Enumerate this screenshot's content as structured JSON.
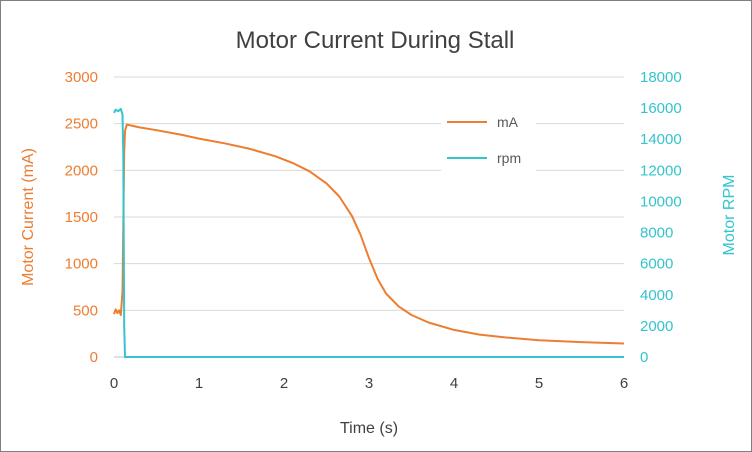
{
  "chart_data": {
    "type": "line",
    "title": "Motor Current During Stall",
    "xlabel": "Time (s)",
    "ylabel": "Motor Current (mA)",
    "y2label": "Motor RPM",
    "xlim": [
      0,
      6
    ],
    "ylim": [
      0,
      3000
    ],
    "y2lim": [
      0,
      18000
    ],
    "x_ticks": [
      "0",
      "1",
      "2",
      "3",
      "4",
      "5",
      "6"
    ],
    "y_ticks": [
      "0",
      "500",
      "1000",
      "1500",
      "2000",
      "2500",
      "3000"
    ],
    "y2_ticks": [
      "0",
      "2000",
      "4000",
      "6000",
      "8000",
      "10000",
      "12000",
      "14000",
      "16000",
      "18000"
    ],
    "grid": true,
    "legend_position": "top-right",
    "colors": {
      "current": "#ED7D31",
      "rpm": "#33C4CE",
      "left_axis": "#ED7D31",
      "right_axis": "#33C4CE"
    },
    "series": [
      {
        "name": "mA",
        "axis": "left",
        "x": [
          0.0,
          0.02,
          0.04,
          0.06,
          0.08,
          0.1,
          0.11,
          0.12,
          0.13,
          0.15,
          0.2,
          0.3,
          0.5,
          0.8,
          1.0,
          1.3,
          1.6,
          1.9,
          2.1,
          2.3,
          2.5,
          2.65,
          2.8,
          2.9,
          3.0,
          3.1,
          3.2,
          3.35,
          3.5,
          3.7,
          4.0,
          4.3,
          4.6,
          5.0,
          5.5,
          6.0
        ],
        "y": [
          460,
          510,
          470,
          500,
          450,
          700,
          1400,
          2200,
          2420,
          2490,
          2480,
          2460,
          2430,
          2380,
          2340,
          2290,
          2230,
          2150,
          2080,
          1990,
          1860,
          1720,
          1510,
          1310,
          1060,
          840,
          680,
          540,
          450,
          370,
          290,
          240,
          210,
          180,
          160,
          145
        ]
      },
      {
        "name": "rpm",
        "axis": "right",
        "x": [
          0.0,
          0.02,
          0.05,
          0.08,
          0.1,
          0.11,
          0.12,
          0.13,
          0.15,
          1.0,
          2.0,
          3.0,
          4.0,
          5.0,
          6.0
        ],
        "y": [
          15700,
          15900,
          15800,
          15950,
          15600,
          13000,
          2000,
          0,
          0,
          0,
          0,
          0,
          0,
          0,
          0
        ]
      }
    ]
  }
}
